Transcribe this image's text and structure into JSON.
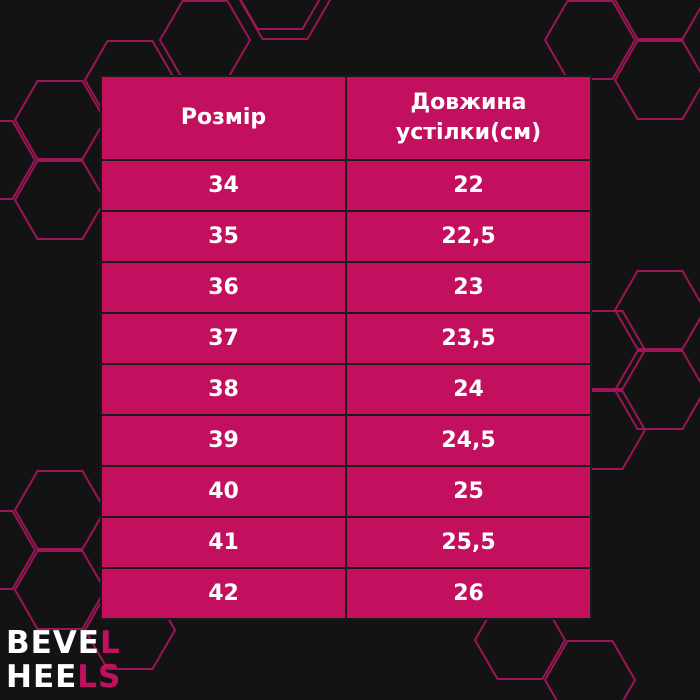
{
  "table": {
    "header": [
      "Розмір",
      "Довжина устілки(см)"
    ],
    "rows": [
      [
        "34",
        "22"
      ],
      [
        "35",
        "22,5"
      ],
      [
        "36",
        "23"
      ],
      [
        "37",
        "23,5"
      ],
      [
        "38",
        "24"
      ],
      [
        "39",
        "24,5"
      ],
      [
        "40",
        "25"
      ],
      [
        "41",
        "25,5"
      ],
      [
        "42",
        "26"
      ]
    ]
  },
  "logo": {
    "line1": [
      "BEVE",
      "L"
    ],
    "line2": [
      "HEE",
      "LS"
    ]
  }
}
